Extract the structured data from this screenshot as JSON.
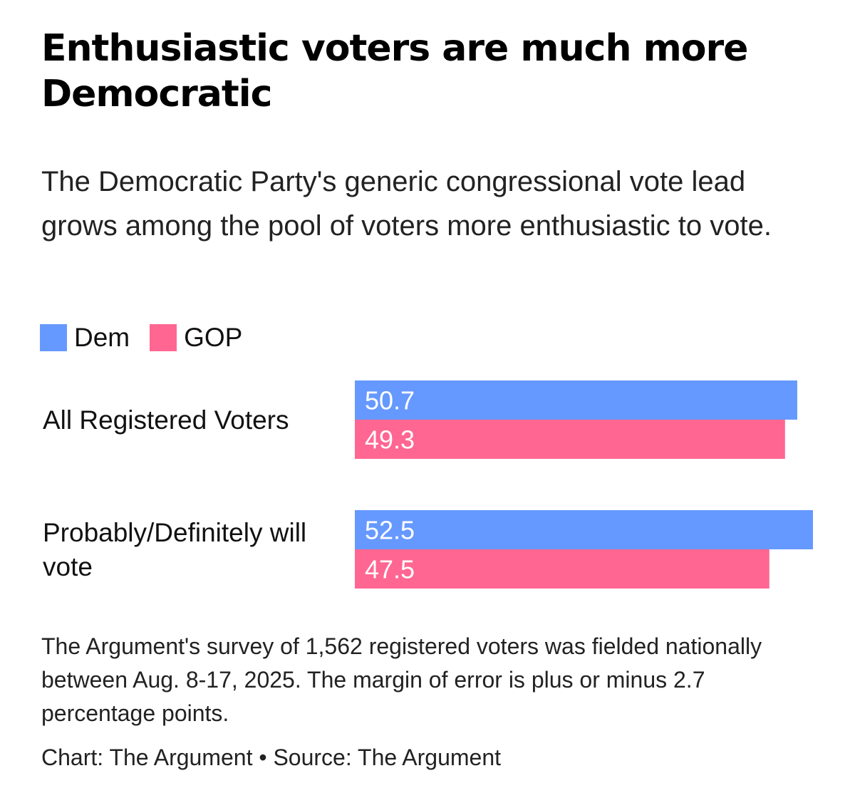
{
  "chart_data": {
    "type": "bar",
    "orientation": "horizontal",
    "title": "Enthusiastic voters are much more Democratic",
    "subtitle": "The Democratic Party's generic congressional vote lead grows among the pool of voters more enthusiastic to vote.",
    "categories": [
      "All Registered Voters",
      "Probably/Definitely will vote"
    ],
    "series": [
      {
        "name": "Dem",
        "color": "#6699ff",
        "values": [
          50.7,
          52.5
        ],
        "labels": [
          "50.7",
          "52.5"
        ]
      },
      {
        "name": "GOP",
        "color": "#ff6692",
        "values": [
          49.3,
          47.5
        ],
        "labels": [
          "49.3",
          "47.5"
        ]
      }
    ],
    "xlim": [
      0,
      52.5
    ],
    "legend_position": "top-left",
    "notes": "The Argument's survey of 1,562 registered voters was fielded nationally between Aug. 8-17, 2025. The margin of error is plus or minus 2.7 percentage points.",
    "credit": "Chart: The Argument • Source: The Argument"
  }
}
